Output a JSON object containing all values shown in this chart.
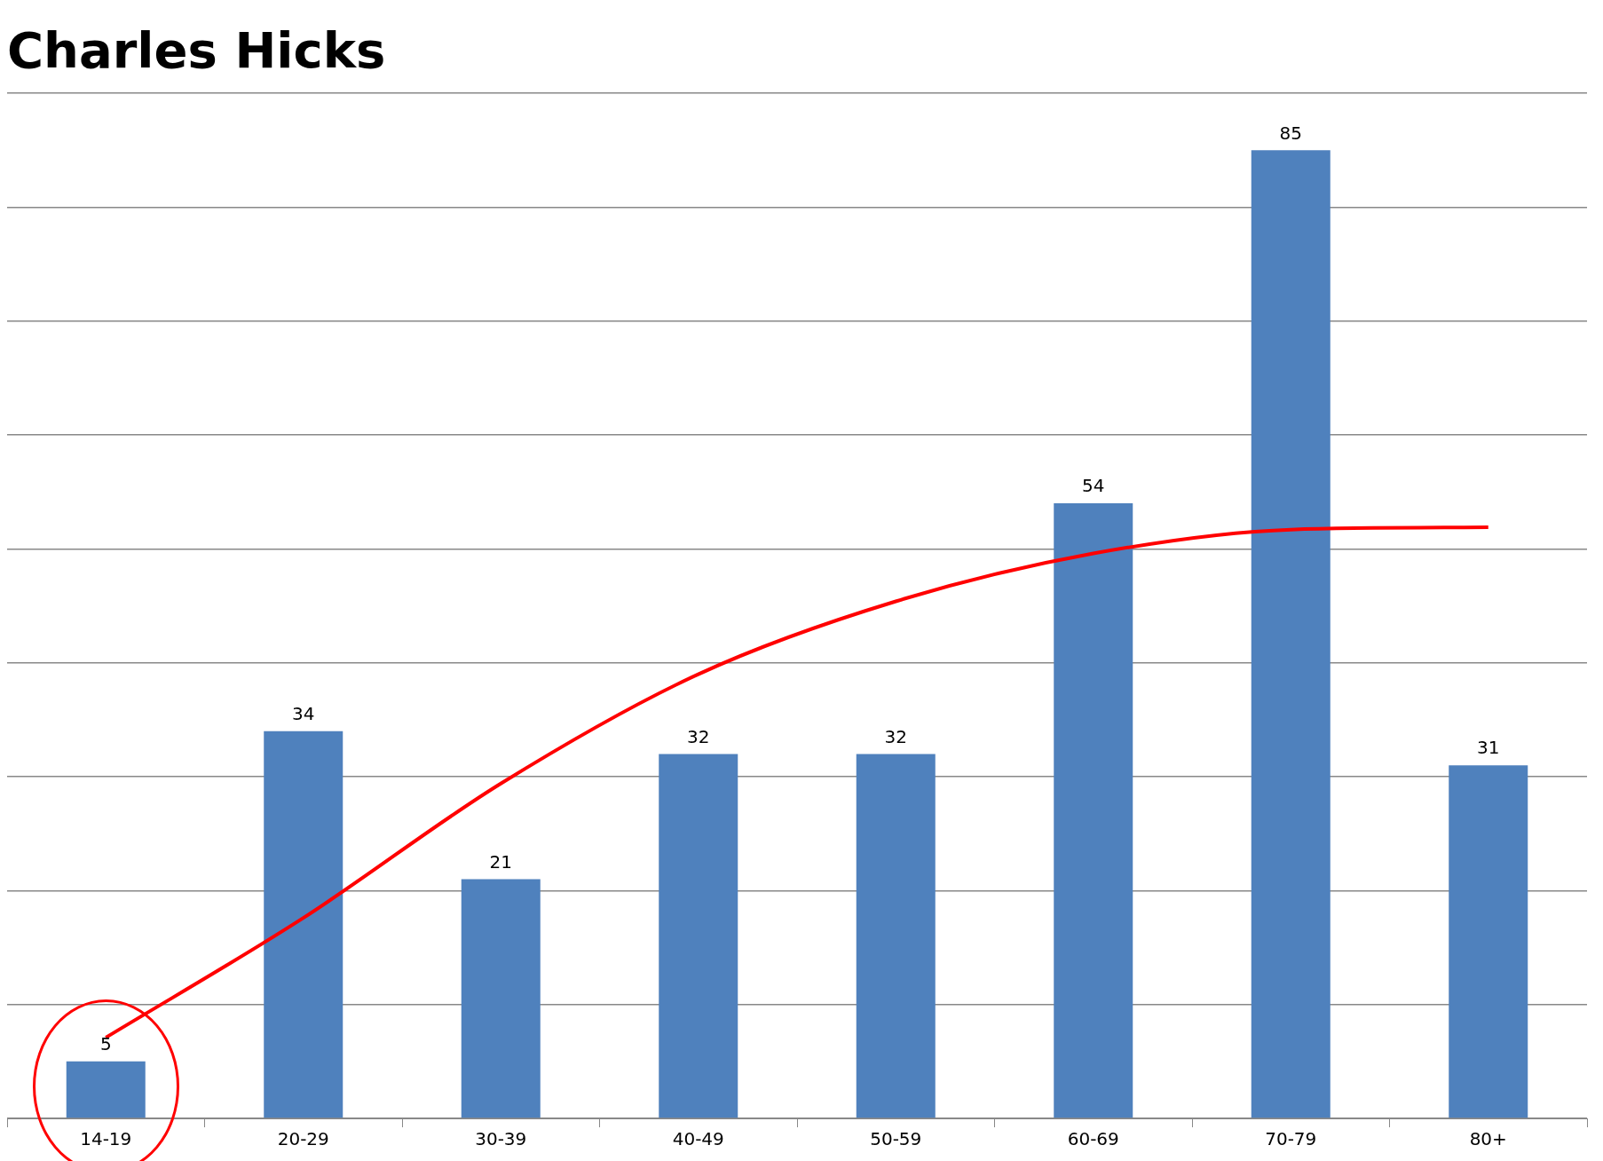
{
  "chart_data": {
    "type": "bar",
    "title": "Charles Hicks",
    "categories": [
      "14-19",
      "20-29",
      "30-39",
      "40-49",
      "50-59",
      "60-69",
      "70-79",
      "80+"
    ],
    "series": [
      {
        "color": "#4f81bd",
        "values": [
          5,
          34,
          21,
          32,
          32,
          54,
          85,
          31
        ],
        "value_labels": [
          "5",
          "34",
          "21",
          "32",
          "32",
          "54",
          "85",
          "31"
        ]
      },
      {
        "type": "line",
        "color": "#ff0000",
        "values": [
          7.1,
          17.6,
          29.4,
          39,
          45.4,
          49.6,
          51.7,
          51.9
        ]
      }
    ],
    "ylim": [
      0,
      90
    ],
    "yticks": [
      {
        "value": 0,
        "label": null
      },
      {
        "value": 10,
        "label": null
      },
      {
        "value": 20,
        "label": null
      },
      {
        "value": 30,
        "label": null
      },
      {
        "value": 40,
        "label": null
      },
      {
        "value": 50,
        "label": null
      },
      {
        "value": 60,
        "label": null
      },
      {
        "value": 70,
        "label": null
      },
      {
        "value": 80,
        "label": null
      },
      {
        "value": 90,
        "label": null
      }
    ],
    "tick_labels": "x",
    "grid": "y",
    "legend": false,
    "marker": "none"
  }
}
